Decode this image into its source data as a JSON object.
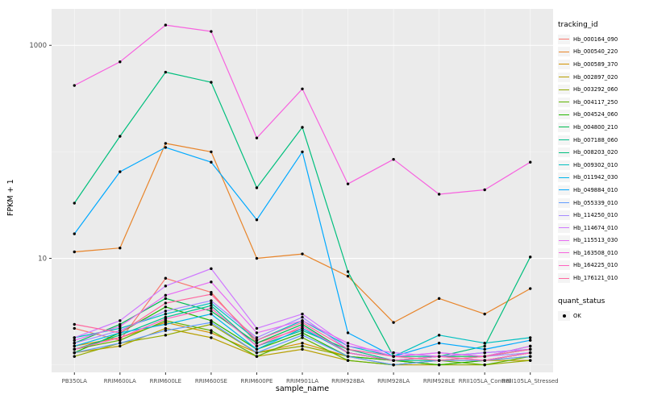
{
  "figure": {
    "bg": "#FFFFFF",
    "panel_bg": "#EBEBEB",
    "grid_major_color": "#FFFFFF",
    "grid_minor_color": "#F7F7F7",
    "tick_color": "#333333",
    "axis_text_color": "#4D4D4D",
    "title_text_color": "#000000"
  },
  "axes": {
    "x_label": "sample_name",
    "y_label": "FPKM + 1",
    "y_ticks": [
      {
        "value": 10,
        "label": "10"
      },
      {
        "value": 1000,
        "label": "1000"
      }
    ],
    "y_minor": [
      1,
      100
    ]
  },
  "legend": {
    "tracking_title": "tracking_id",
    "quant_title": "quant_status",
    "quant_items": [
      {
        "label": "OK",
        "color": "#000000"
      }
    ]
  },
  "chart_data": {
    "type": "line",
    "title": "",
    "xlabel": "sample_name",
    "ylabel": "FPKM + 1",
    "y_scale": "log10",
    "ylim": [
      0.85,
      2200
    ],
    "grid": true,
    "legend_position": "right",
    "point_color": "#000000",
    "point_radius": 1.7,
    "categories": [
      "PB350LA",
      "RRIM600LA",
      "RRIM600LE",
      "RRIM600SE",
      "RRIM600PE",
      "RRIM901LA",
      "RRIM928BA",
      "RRIM928LA",
      "RRIM928LE",
      "RRII105LA_Control",
      "RRII105LA_Stressed"
    ],
    "series": [
      {
        "name": "Hb_000164_090",
        "color": "#F8766D",
        "values": [
          2.2,
          1.7,
          6.5,
          4.8,
          1.6,
          2.2,
          1.3,
          1.1,
          1.2,
          1.1,
          1.3
        ]
      },
      {
        "name": "Hb_000540_220",
        "color": "#E8852B",
        "values": [
          11.5,
          12.5,
          120,
          100,
          10,
          11,
          6.8,
          2.5,
          4.2,
          3.0,
          5.2
        ]
      },
      {
        "name": "Hb_000589_370",
        "color": "#D39200",
        "values": [
          1.5,
          1.8,
          2.5,
          2.0,
          1.3,
          1.6,
          1.2,
          1.0,
          1.1,
          1.1,
          1.2
        ]
      },
      {
        "name": "Hb_002897_020",
        "color": "#B79F00",
        "values": [
          1.3,
          1.5,
          2.2,
          1.8,
          1.2,
          1.4,
          1.1,
          1.0,
          1.0,
          1.1,
          1.1
        ]
      },
      {
        "name": "Hb_003292_060",
        "color": "#93AA00",
        "values": [
          1.2,
          1.6,
          1.9,
          2.4,
          1.3,
          1.5,
          1.2,
          1.1,
          1.0,
          1.0,
          1.1
        ]
      },
      {
        "name": "Hb_004117_250",
        "color": "#5EB300",
        "values": [
          1.4,
          1.7,
          2.6,
          2.1,
          1.2,
          1.8,
          1.1,
          1.0,
          1.1,
          1.0,
          1.2
        ]
      },
      {
        "name": "Hb_004524_060",
        "color": "#24B700",
        "values": [
          1.3,
          2.0,
          3.5,
          2.6,
          1.4,
          2.0,
          1.2,
          1.1,
          1.0,
          1.1,
          1.3
        ]
      },
      {
        "name": "Hb_004800_210",
        "color": "#00BC51",
        "values": [
          1.6,
          2.4,
          4.2,
          3.2,
          1.6,
          2.4,
          1.3,
          1.1,
          1.2,
          1.2,
          1.4
        ]
      },
      {
        "name": "Hb_007188_060",
        "color": "#00C08B",
        "values": [
          1.4,
          1.9,
          2.8,
          3.6,
          1.5,
          2.1,
          1.4,
          1.1,
          1.1,
          1.2,
          1.5
        ]
      },
      {
        "name": "Hb_008203_020",
        "color": "#00BF7D",
        "values": [
          33,
          140,
          560,
          450,
          46,
          170,
          7.5,
          1.2,
          1.2,
          1.5,
          10.3
        ]
      },
      {
        "name": "Hb_009302_010",
        "color": "#00C0C0",
        "values": [
          1.8,
          2.2,
          3.0,
          3.8,
          1.7,
          2.6,
          1.5,
          1.2,
          1.9,
          1.6,
          1.8
        ]
      },
      {
        "name": "Hb_011942_030",
        "color": "#00B5EC",
        "values": [
          1.5,
          2.0,
          2.4,
          3.0,
          1.4,
          2.2,
          1.3,
          1.1,
          1.2,
          1.3,
          1.4
        ]
      },
      {
        "name": "Hb_049884_010",
        "color": "#00A9FF",
        "values": [
          17,
          65,
          110,
          80,
          23,
          100,
          2.0,
          1.2,
          1.6,
          1.4,
          1.7
        ]
      },
      {
        "name": "Hb_055339_010",
        "color": "#619CFF",
        "values": [
          1.3,
          1.6,
          2.1,
          2.5,
          1.3,
          1.9,
          1.2,
          1.0,
          1.1,
          1.1,
          1.2
        ]
      },
      {
        "name": "Hb_114250_010",
        "color": "#A58AFF",
        "values": [
          1.6,
          2.1,
          3.2,
          4.0,
          1.8,
          2.8,
          1.4,
          1.2,
          1.3,
          1.2,
          1.3
        ]
      },
      {
        "name": "Hb_114674_010",
        "color": "#CF78FF",
        "values": [
          1.8,
          2.6,
          5.5,
          8.0,
          2.2,
          3.0,
          1.5,
          1.3,
          1.2,
          1.3,
          1.4
        ]
      },
      {
        "name": "Hb_115513_030",
        "color": "#E76BF3",
        "values": [
          1.7,
          2.3,
          4.5,
          6.0,
          2.0,
          2.6,
          1.6,
          1.2,
          1.3,
          1.2,
          1.5
        ]
      },
      {
        "name": "Hb_163508_010",
        "color": "#F763DF",
        "values": [
          420,
          700,
          1550,
          1350,
          135,
          390,
          50,
          85,
          40,
          44,
          80
        ]
      },
      {
        "name": "Hb_164225_010",
        "color": "#FF61C0",
        "values": [
          1.4,
          1.8,
          2.7,
          3.4,
          1.5,
          2.3,
          1.3,
          1.1,
          1.2,
          1.1,
          1.3
        ]
      },
      {
        "name": "Hb_176121_010",
        "color": "#FF689F",
        "values": [
          2.4,
          2.0,
          3.8,
          4.6,
          1.7,
          2.5,
          1.4,
          1.2,
          1.1,
          1.2,
          1.4
        ]
      }
    ]
  }
}
